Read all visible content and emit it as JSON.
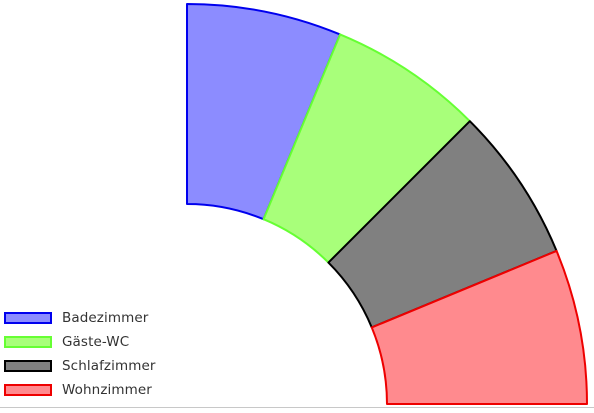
{
  "chart_data": {
    "type": "pie",
    "variant": "half-doughnut-quarter",
    "title": "",
    "categories": [
      "Badezimmer",
      "Gäste-WC",
      "Schlafzimmer",
      "Wohnzimmer"
    ],
    "values": [
      1,
      1,
      1,
      1
    ],
    "colors": {
      "fill": [
        "#8c8cff",
        "#a8ff7a",
        "#808080",
        "#ff8a8e"
      ],
      "stroke": [
        "#0000ee",
        "#66ff33",
        "#000000",
        "#ee0000"
      ]
    },
    "legend_position": "bottom-left"
  }
}
